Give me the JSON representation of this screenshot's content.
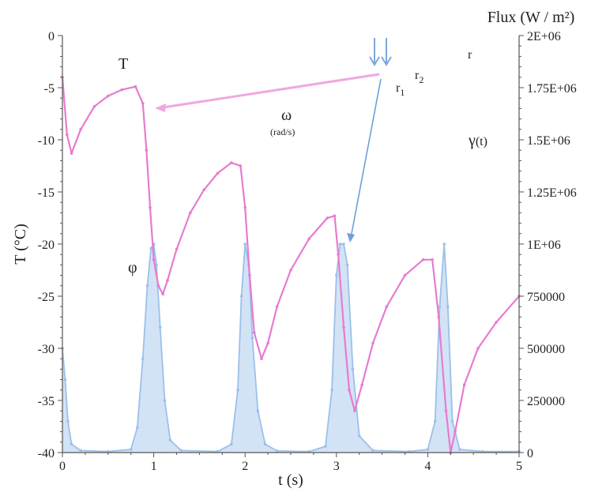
{
  "chart_data": {
    "type": "line",
    "title": "",
    "xlabel": "t (s)",
    "ylabel_left": "T (°C)",
    "ylabel_right": "Flux (W / m²)",
    "xlim": [
      0,
      5
    ],
    "ylim_left": [
      -40,
      0
    ],
    "ylim_right": [
      0,
      2000000
    ],
    "x_ticks": [
      "0",
      "1",
      "2",
      "3",
      "4",
      "5"
    ],
    "y_left_ticks": [
      "0",
      "-5",
      "-10",
      "-15",
      "-20",
      "-25",
      "-30",
      "-35",
      "-40"
    ],
    "y_right_ticks": [
      "2E+06",
      "1.75E+06",
      "1.5E+06",
      "1.25E+06",
      "1E+06",
      "750000",
      "500000",
      "250000",
      "0"
    ],
    "grid": false,
    "series": [
      {
        "name": "T",
        "axis": "left",
        "color": "#e77bd0",
        "x": [
          0.0,
          0.05,
          0.1,
          0.2,
          0.35,
          0.5,
          0.65,
          0.8,
          0.88,
          0.92,
          0.96,
          1.0,
          1.05,
          1.1,
          1.15,
          1.25,
          1.4,
          1.55,
          1.7,
          1.85,
          1.95,
          2.0,
          2.05,
          2.1,
          2.18,
          2.25,
          2.35,
          2.5,
          2.7,
          2.9,
          2.98,
          3.02,
          3.08,
          3.14,
          3.2,
          3.28,
          3.4,
          3.55,
          3.75,
          3.95,
          4.05,
          4.12,
          4.2,
          4.25,
          4.3,
          4.4,
          4.55,
          4.75,
          5.0
        ],
        "y": [
          -4.0,
          -9.5,
          -11.3,
          -9.0,
          -6.8,
          -5.8,
          -5.2,
          -4.9,
          -6.5,
          -11.0,
          -16.5,
          -21.5,
          -24.0,
          -24.8,
          -23.5,
          -20.5,
          -17.0,
          -14.8,
          -13.2,
          -12.2,
          -12.5,
          -16.5,
          -23.0,
          -28.5,
          -31.0,
          -29.5,
          -26.0,
          -22.5,
          -19.5,
          -17.5,
          -17.3,
          -21.0,
          -28.0,
          -34.0,
          -36.0,
          -33.5,
          -29.5,
          -26.0,
          -23.0,
          -21.5,
          -21.5,
          -27.0,
          -36.0,
          -40.0,
          -38.0,
          -33.5,
          -30.0,
          -27.5,
          -25.0
        ]
      },
      {
        "name": "φ",
        "axis": "right",
        "color": "#9cc0ea",
        "x": [
          0.0,
          0.03,
          0.06,
          0.1,
          0.2,
          0.5,
          0.75,
          0.82,
          0.88,
          0.93,
          0.97,
          1.0,
          1.03,
          1.07,
          1.12,
          1.18,
          1.3,
          1.7,
          1.85,
          1.92,
          1.96,
          2.0,
          2.04,
          2.08,
          2.14,
          2.22,
          2.35,
          2.7,
          2.88,
          2.95,
          3.0,
          3.04,
          3.08,
          3.12,
          3.18,
          3.25,
          3.4,
          3.8,
          4.0,
          4.08,
          4.13,
          4.18,
          4.22,
          4.27,
          4.35,
          4.6,
          5.0
        ],
        "y": [
          500000,
          350000,
          150000,
          40000,
          10000,
          5000,
          15000,
          120000,
          450000,
          800000,
          980000,
          1000000,
          900000,
          600000,
          250000,
          60000,
          10000,
          5000,
          40000,
          300000,
          750000,
          1000000,
          900000,
          550000,
          200000,
          40000,
          8000,
          5000,
          30000,
          300000,
          850000,
          1000000,
          1000000,
          900000,
          400000,
          80000,
          10000,
          5000,
          15000,
          150000,
          700000,
          1000000,
          700000,
          150000,
          15000,
          5000,
          5000
        ]
      }
    ],
    "annotations": [
      {
        "text": "T",
        "series": "T"
      },
      {
        "text": "φ",
        "series": "φ"
      },
      {
        "text": "ω"
      },
      {
        "text": "(rad/s)"
      },
      {
        "text": "γ(t)"
      },
      {
        "text": "r"
      },
      {
        "text": "r1"
      },
      {
        "text": "r2"
      }
    ]
  },
  "labels": {
    "series_T": "T",
    "series_phi": "φ",
    "omega": "ω",
    "omega_unit": "(rad/s)",
    "gamma_base": "γ",
    "gamma_arg": "(t)",
    "r": "r",
    "r_base": "r",
    "r1_sub": "1",
    "r2_sub": "2"
  }
}
